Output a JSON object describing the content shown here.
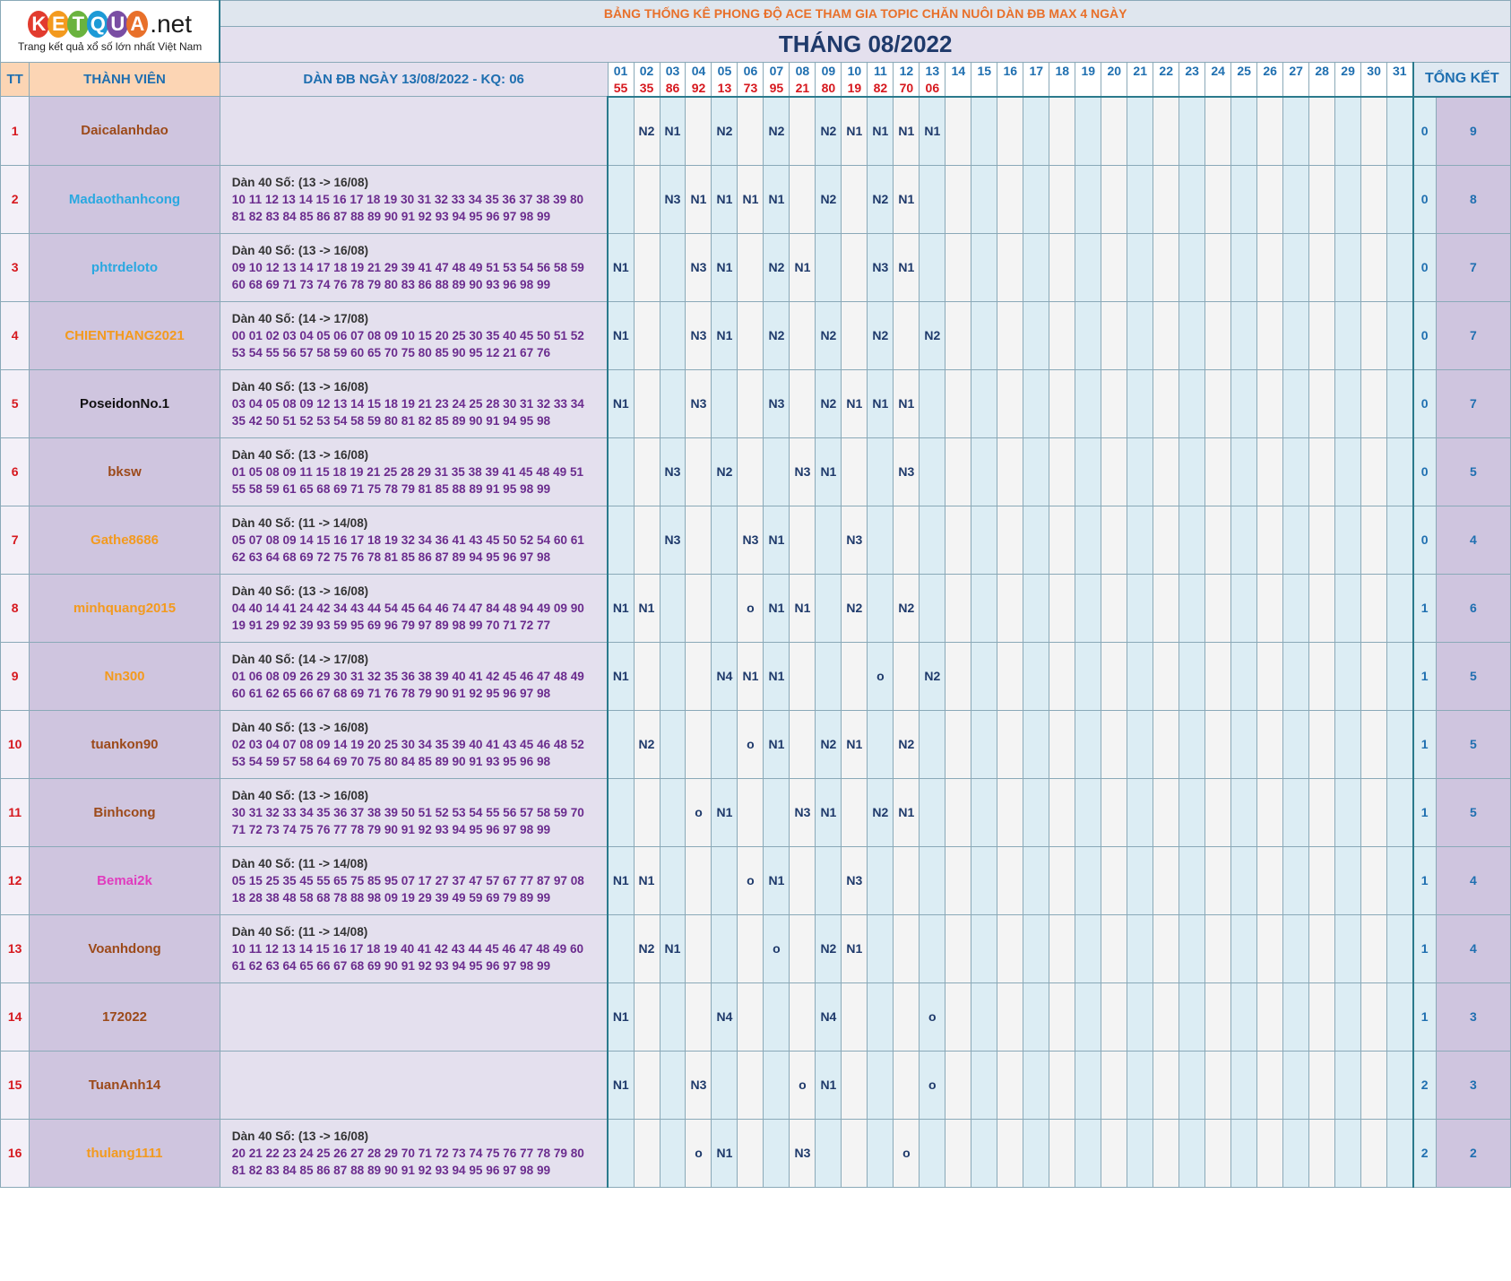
{
  "logo": {
    "letters": [
      {
        "ch": "K",
        "color": "#e23b2e"
      },
      {
        "ch": "E",
        "color": "#f39a1e"
      },
      {
        "ch": "T",
        "color": "#6ab33e"
      },
      {
        "ch": "Q",
        "color": "#1d9ad6"
      },
      {
        "ch": "U",
        "color": "#7a4ea3"
      },
      {
        "ch": "A",
        "color": "#e8702a"
      }
    ],
    "suffix": ".net",
    "tagline": "Trang kết quả xổ số lớn nhất Việt Nam"
  },
  "title": "BẢNG THỐNG KÊ PHONG ĐỘ ACE THAM GIA TOPIC CHĂN NUÔI DÀN ĐB MAX 4 NGÀY",
  "month": "THÁNG 08/2022",
  "headers": {
    "tt": "TT",
    "member": "THÀNH VIÊN",
    "dan": "DÀN ĐB NGÀY 13/08/2022 - KQ: 06",
    "total": "TỔNG KẾT"
  },
  "days": [
    "01",
    "02",
    "03",
    "04",
    "05",
    "06",
    "07",
    "08",
    "09",
    "10",
    "11",
    "12",
    "13",
    "14",
    "15",
    "16",
    "17",
    "18",
    "19",
    "20",
    "21",
    "22",
    "23",
    "24",
    "25",
    "26",
    "27",
    "28",
    "29",
    "30",
    "31"
  ],
  "results": [
    "55",
    "35",
    "86",
    "92",
    "13",
    "73",
    "95",
    "21",
    "80",
    "19",
    "82",
    "70",
    "06",
    "",
    "",
    "",
    "",
    "",
    "",
    "",
    "",
    "",
    "",
    "",
    "",
    "",
    "",
    "",
    "",
    "",
    ""
  ],
  "rows": [
    {
      "tt": "1",
      "name": "Daicalanhdao",
      "color": "#9c4a1a",
      "dan": [],
      "marks": {
        "02": "N2",
        "03": "N1",
        "05": "N2",
        "07": "N2",
        "09": "N2",
        "10": "N1",
        "11": "N1",
        "12": "N1",
        "13": "N1"
      },
      "t1": "0",
      "t2": "9"
    },
    {
      "tt": "2",
      "name": "Madaothanhcong",
      "color": "#2aa8e0",
      "dan": [
        "Dàn 40 Số: (13 -> 16/08)",
        "10 11 12 13 14 15 16 17 18 19 30 31 32 33 34 35 36 37 38 39 80",
        "81 82 83 84 85 86 87 88 89 90 91 92 93 94 95 96 97 98 99"
      ],
      "marks": {
        "03": "N3",
        "04": "N1",
        "05": "N1",
        "06": "N1",
        "07": "N1",
        "09": "N2",
        "11": "N2",
        "12": "N1"
      },
      "t1": "0",
      "t2": "8"
    },
    {
      "tt": "3",
      "name": "phtrdeloto",
      "color": "#2aa8e0",
      "dan": [
        "Dàn 40 Số: (13 -> 16/08)",
        "09 10 12 13 14 17 18 19 21 29 39 41 47 48 49 51 53 54 56 58 59",
        "60 68 69 71 73 74 76 78 79 80 83 86 88 89 90 93 96 98 99"
      ],
      "marks": {
        "01": "N1",
        "04": "N3",
        "05": "N1",
        "07": "N2",
        "08": "N1",
        "11": "N3",
        "12": "N1"
      },
      "t1": "0",
      "t2": "7"
    },
    {
      "tt": "4",
      "name": "CHIENTHANG2021",
      "color": "#f39a1e",
      "dan": [
        "Dàn 40 Số: (14 -> 17/08)",
        "00 01 02 03 04 05 06 07 08 09 10 15 20 25 30 35 40 45 50 51 52",
        "53 54 55 56 57 58 59 60 65 70 75 80 85 90 95 12 21 67 76"
      ],
      "marks": {
        "01": "N1",
        "04": "N3",
        "05": "N1",
        "07": "N2",
        "09": "N2",
        "11": "N2",
        "13": "N2"
      },
      "t1": "0",
      "t2": "7"
    },
    {
      "tt": "5",
      "name": "PoseidonNo.1",
      "color": "#111111",
      "dan": [
        "Dàn 40 Số: (13 -> 16/08)",
        "03 04 05 08 09 12 13 14 15 18 19 21 23 24 25 28 30 31 32 33 34",
        "35 42 50 51 52 53 54 58 59 80 81 82 85 89 90 91 94 95 98"
      ],
      "marks": {
        "01": "N1",
        "04": "N3",
        "07": "N3",
        "09": "N2",
        "10": "N1",
        "11": "N1",
        "12": "N1"
      },
      "t1": "0",
      "t2": "7"
    },
    {
      "tt": "6",
      "name": "bksw",
      "color": "#9c4a1a",
      "dan": [
        "Dàn 40 Số: (13 -> 16/08)",
        "01 05 08 09 11 15 18 19 21 25 28 29 31 35 38 39 41 45 48 49 51",
        "55 58 59 61 65 68 69 71 75 78 79 81 85 88 89 91 95 98 99"
      ],
      "marks": {
        "03": "N3",
        "05": "N2",
        "08": "N3",
        "09": "N1",
        "12": "N3"
      },
      "t1": "0",
      "t2": "5"
    },
    {
      "tt": "7",
      "name": "Gathe8686",
      "color": "#f39a1e",
      "dan": [
        "Dàn 40 Số: (11 -> 14/08)",
        "05 07 08 09 14 15 16 17 18 19 32 34 36 41 43 45 50 52 54 60 61",
        "62 63 64 68 69 72 75 76 78 81 85 86 87 89 94 95 96 97 98"
      ],
      "marks": {
        "03": "N3",
        "06": "N3",
        "07": "N1",
        "10": "N3"
      },
      "t1": "0",
      "t2": "4"
    },
    {
      "tt": "8",
      "name": "minhquang2015",
      "color": "#f39a1e",
      "dan": [
        "Dàn 40 Số: (13 -> 16/08)",
        "04 40 14 41 24 42 34 43 44 54 45 64 46 74 47 84 48 94 49 09 90",
        "19 91 29 92 39 93 59 95 69 96 79 97 89 98 99 70 71 72 77"
      ],
      "marks": {
        "01": "N1",
        "02": "N1",
        "06": "o",
        "07": "N1",
        "08": "N1",
        "10": "N2",
        "12": "N2"
      },
      "t1": "1",
      "t2": "6"
    },
    {
      "tt": "9",
      "name": "Nn300",
      "color": "#f39a1e",
      "dan": [
        "Dàn 40 Số: (14 -> 17/08)",
        "01 06 08 09 26 29 30 31 32 35 36 38 39 40 41 42 45 46 47 48 49",
        "60 61 62 65 66 67 68 69 71 76 78 79 90 91 92 95 96 97 98"
      ],
      "marks": {
        "01": "N1",
        "05": "N4",
        "06": "N1",
        "07": "N1",
        "11": "o",
        "13": "N2"
      },
      "t1": "1",
      "t2": "5"
    },
    {
      "tt": "10",
      "name": "tuankon90",
      "color": "#9c4a1a",
      "dan": [
        "Dàn 40 Số: (13 -> 16/08)",
        "02 03 04 07 08 09 14 19 20 25 30 34 35 39 40 41 43 45 46 48 52",
        "53 54 59 57 58 64 69 70 75 80 84 85 89 90 91 93 95 96 98"
      ],
      "marks": {
        "02": "N2",
        "06": "o",
        "07": "N1",
        "09": "N2",
        "10": "N1",
        "12": "N2"
      },
      "t1": "1",
      "t2": "5"
    },
    {
      "tt": "11",
      "name": "Binhcong",
      "color": "#9c4a1a",
      "dan": [
        "Dàn 40 Số: (13 -> 16/08)",
        "30 31 32 33 34 35 36 37 38 39 50 51 52 53 54 55 56 57 58 59 70",
        "71 72 73 74 75 76 77 78 79 90 91 92 93 94 95 96 97 98 99"
      ],
      "marks": {
        "04": "o",
        "05": "N1",
        "08": "N3",
        "09": "N1",
        "11": "N2",
        "12": "N1"
      },
      "t1": "1",
      "t2": "5"
    },
    {
      "tt": "12",
      "name": "Bemai2k",
      "color": "#e03cbe",
      "dan": [
        "Dàn 40 Số: (11 -> 14/08)",
        "05 15 25 35 45 55 65 75 85 95 07 17 27 37 47 57 67 77 87 97 08",
        "18 28 38 48 58 68 78 88 98 09 19 29 39 49 59 69 79 89 99"
      ],
      "marks": {
        "01": "N1",
        "02": "N1",
        "06": "o",
        "07": "N1",
        "10": "N3"
      },
      "t1": "1",
      "t2": "4"
    },
    {
      "tt": "13",
      "name": "Voanhdong",
      "color": "#9c4a1a",
      "dan": [
        "Dàn 40 Số: (11 -> 14/08)",
        "10 11 12 13 14 15 16 17 18 19 40 41 42 43 44 45 46 47 48 49 60",
        "61 62 63 64 65 66 67 68 69 90 91 92 93 94 95 96 97 98 99"
      ],
      "marks": {
        "02": "N2",
        "03": "N1",
        "07": "o",
        "09": "N2",
        "10": "N1"
      },
      "t1": "1",
      "t2": "4"
    },
    {
      "tt": "14",
      "name": "172022",
      "color": "#9c4a1a",
      "dan": [],
      "marks": {
        "01": "N1",
        "05": "N4",
        "09": "N4",
        "13": "o"
      },
      "t1": "1",
      "t2": "3"
    },
    {
      "tt": "15",
      "name": "TuanAnh14",
      "color": "#9c4a1a",
      "dan": [],
      "marks": {
        "01": "N1",
        "04": "N3",
        "08": "o",
        "09": "N1",
        "13": "o"
      },
      "t1": "2",
      "t2": "3"
    },
    {
      "tt": "16",
      "name": "thulang1111",
      "color": "#f39a1e",
      "dan": [
        "Dàn 40 Số: (13 -> 16/08)",
        "20 21 22 23 24 25 26 27 28 29 70 71 72 73 74 75 76 77 78 79 80",
        "81 82 83 84 85 86 87 88 89 90 91 92 93 94 95 96 97 98 99"
      ],
      "marks": {
        "04": "o",
        "05": "N1",
        "08": "N3",
        "12": "o"
      },
      "t1": "2",
      "t2": "2"
    }
  ]
}
